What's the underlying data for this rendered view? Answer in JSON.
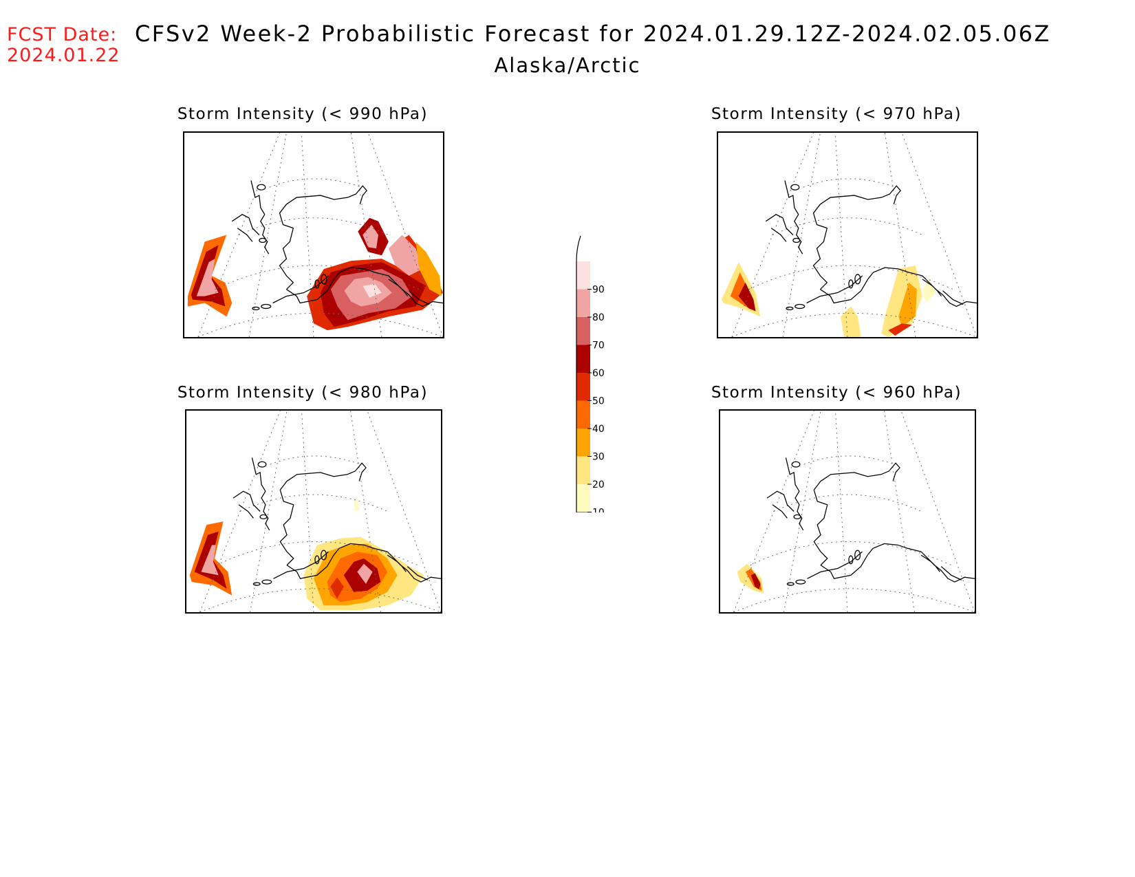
{
  "header": {
    "fcst_label": "FCST Date:",
    "fcst_date": "2024.01.22",
    "title": "CFSv2 Week-2 Probabilistic Forecast for 2024.01.29.12Z-2024.02.05.06Z",
    "region": "Alaska/Arctic"
  },
  "panels": [
    {
      "title": "Storm Intensity (< 990 hPa)"
    },
    {
      "title": "Storm Intensity (< 970 hPa)"
    },
    {
      "title": "Storm Intensity (< 980 hPa)"
    },
    {
      "title": "Storm Intensity (< 960 hPa)"
    }
  ],
  "colorbar": {
    "levels": [
      "10",
      "20",
      "30",
      "40",
      "50",
      "60",
      "70",
      "80",
      "90"
    ],
    "colors": [
      "#fffbc0",
      "#ffe680",
      "#ffa500",
      "#ff6a00",
      "#e22a00",
      "#aa0000",
      "#d86060",
      "#f0a4a4",
      "#fde0e0"
    ]
  }
}
